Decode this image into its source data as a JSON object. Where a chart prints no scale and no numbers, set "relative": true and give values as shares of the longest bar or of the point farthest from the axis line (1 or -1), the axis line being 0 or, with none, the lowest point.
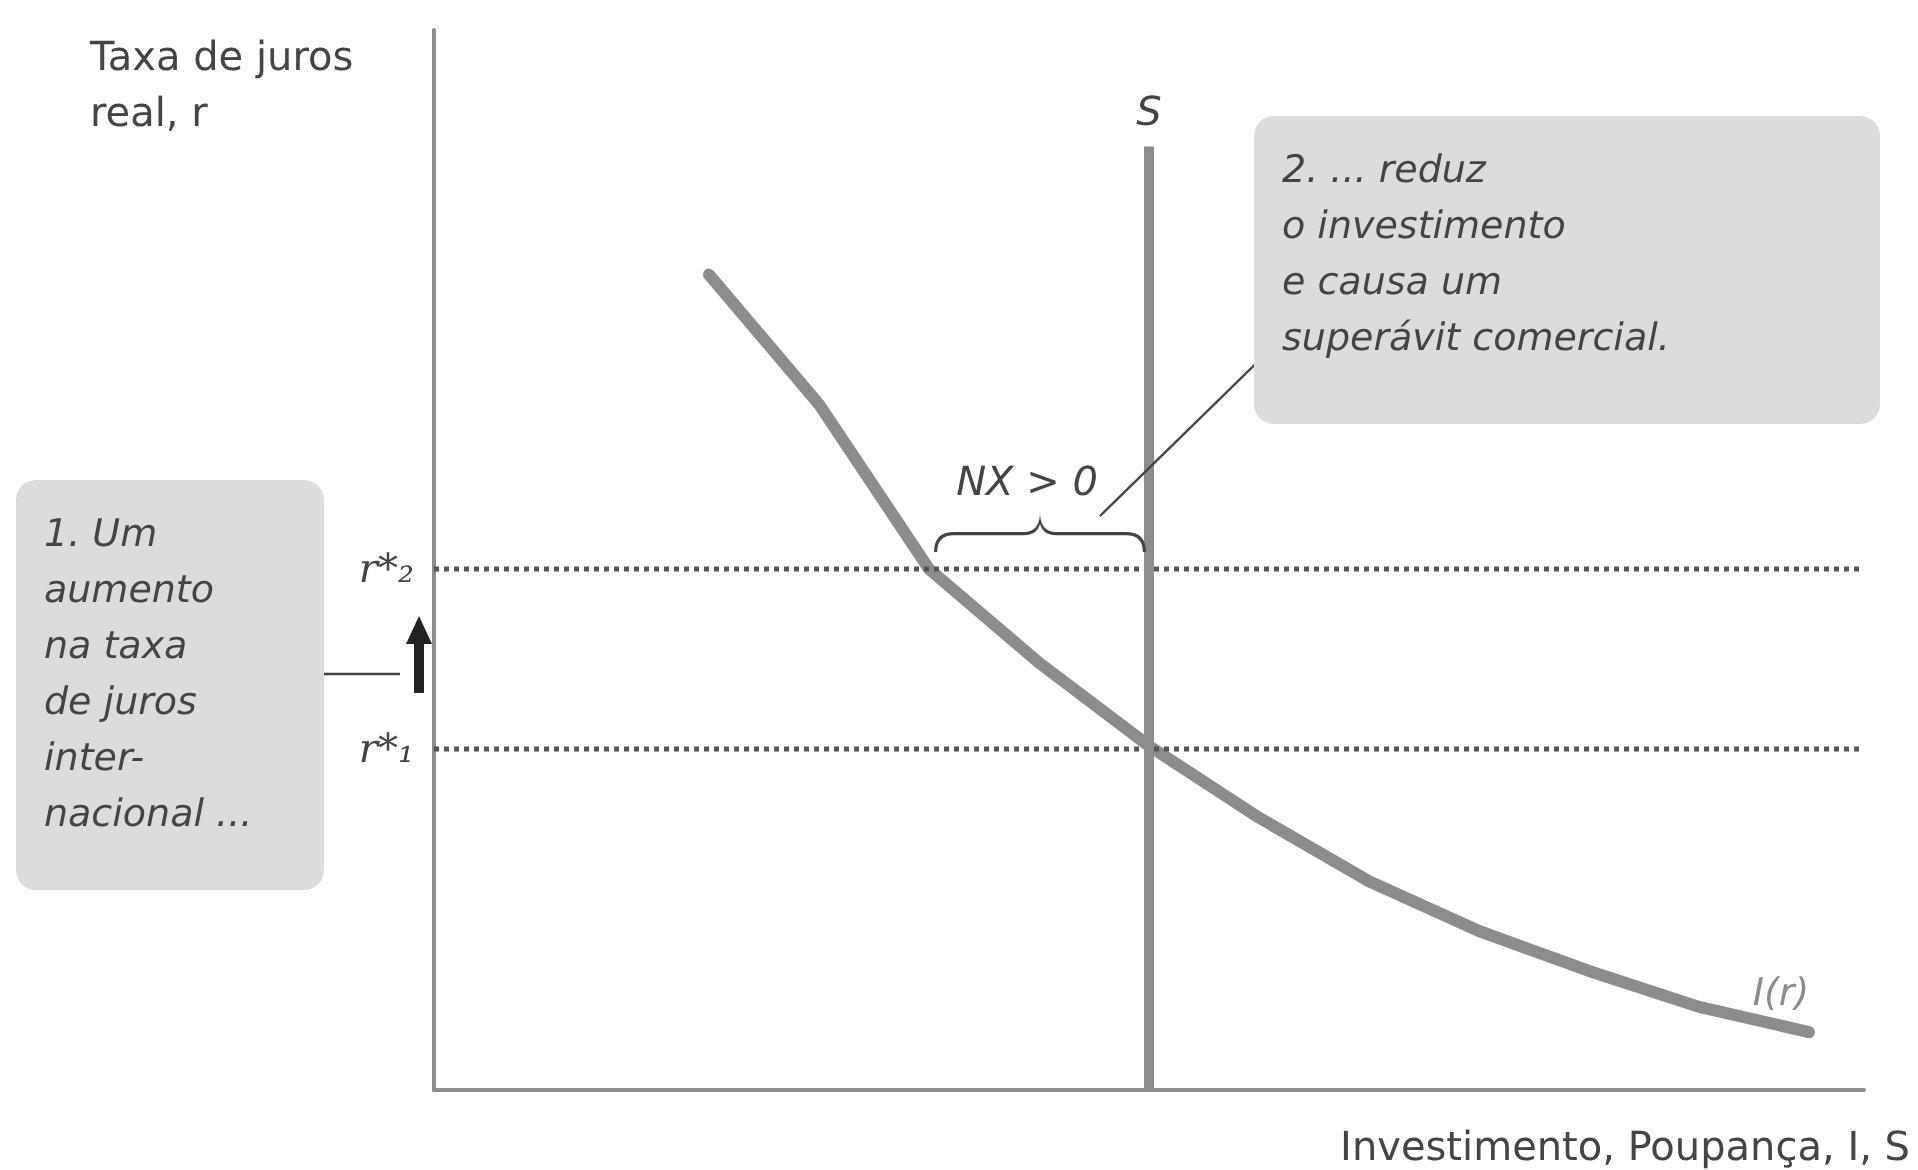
{
  "chart_data": {
    "type": "line",
    "relative": true,
    "ylabel": "Taxa de juros\nreal, r",
    "xlabel": "Investimento, Poupança, I, S",
    "grid": false,
    "legend": false,
    "marker": "none",
    "categories": [
      null,
      null,
      null,
      null,
      null,
      null,
      null,
      null,
      null,
      null,
      null,
      null,
      null
    ],
    "series": [
      {
        "name": "I(r)",
        "color": "#8c8c8c",
        "values": [
          null,
          null,
          1,
          0.841,
          0.639,
          0.524,
          0.422,
          0.334,
          0.256,
          0.195,
          0.146,
          0.102,
          0.071
        ]
      }
    ],
    "ref_lines": [
      {
        "axis": "y",
        "value": 0.639,
        "label": "r*₂",
        "line_style": "dotted",
        "color": "#555555"
      },
      {
        "axis": "y",
        "value": 0.422,
        "label": "r*₁",
        "line_style": "dotted",
        "color": "#555555"
      },
      {
        "axis": "x",
        "label": "S",
        "line_style": "solid",
        "color": "#8c8c8c"
      }
    ],
    "annotations": [
      {
        "text": "NX > 0",
        "y": 0.639
      },
      "1. Um\naumento\nna taxa\nde juros\ninter-\nnacional  ...",
      "2. ... reduz\no investimento\ne causa um\nsuperávit comercial."
    ]
  }
}
